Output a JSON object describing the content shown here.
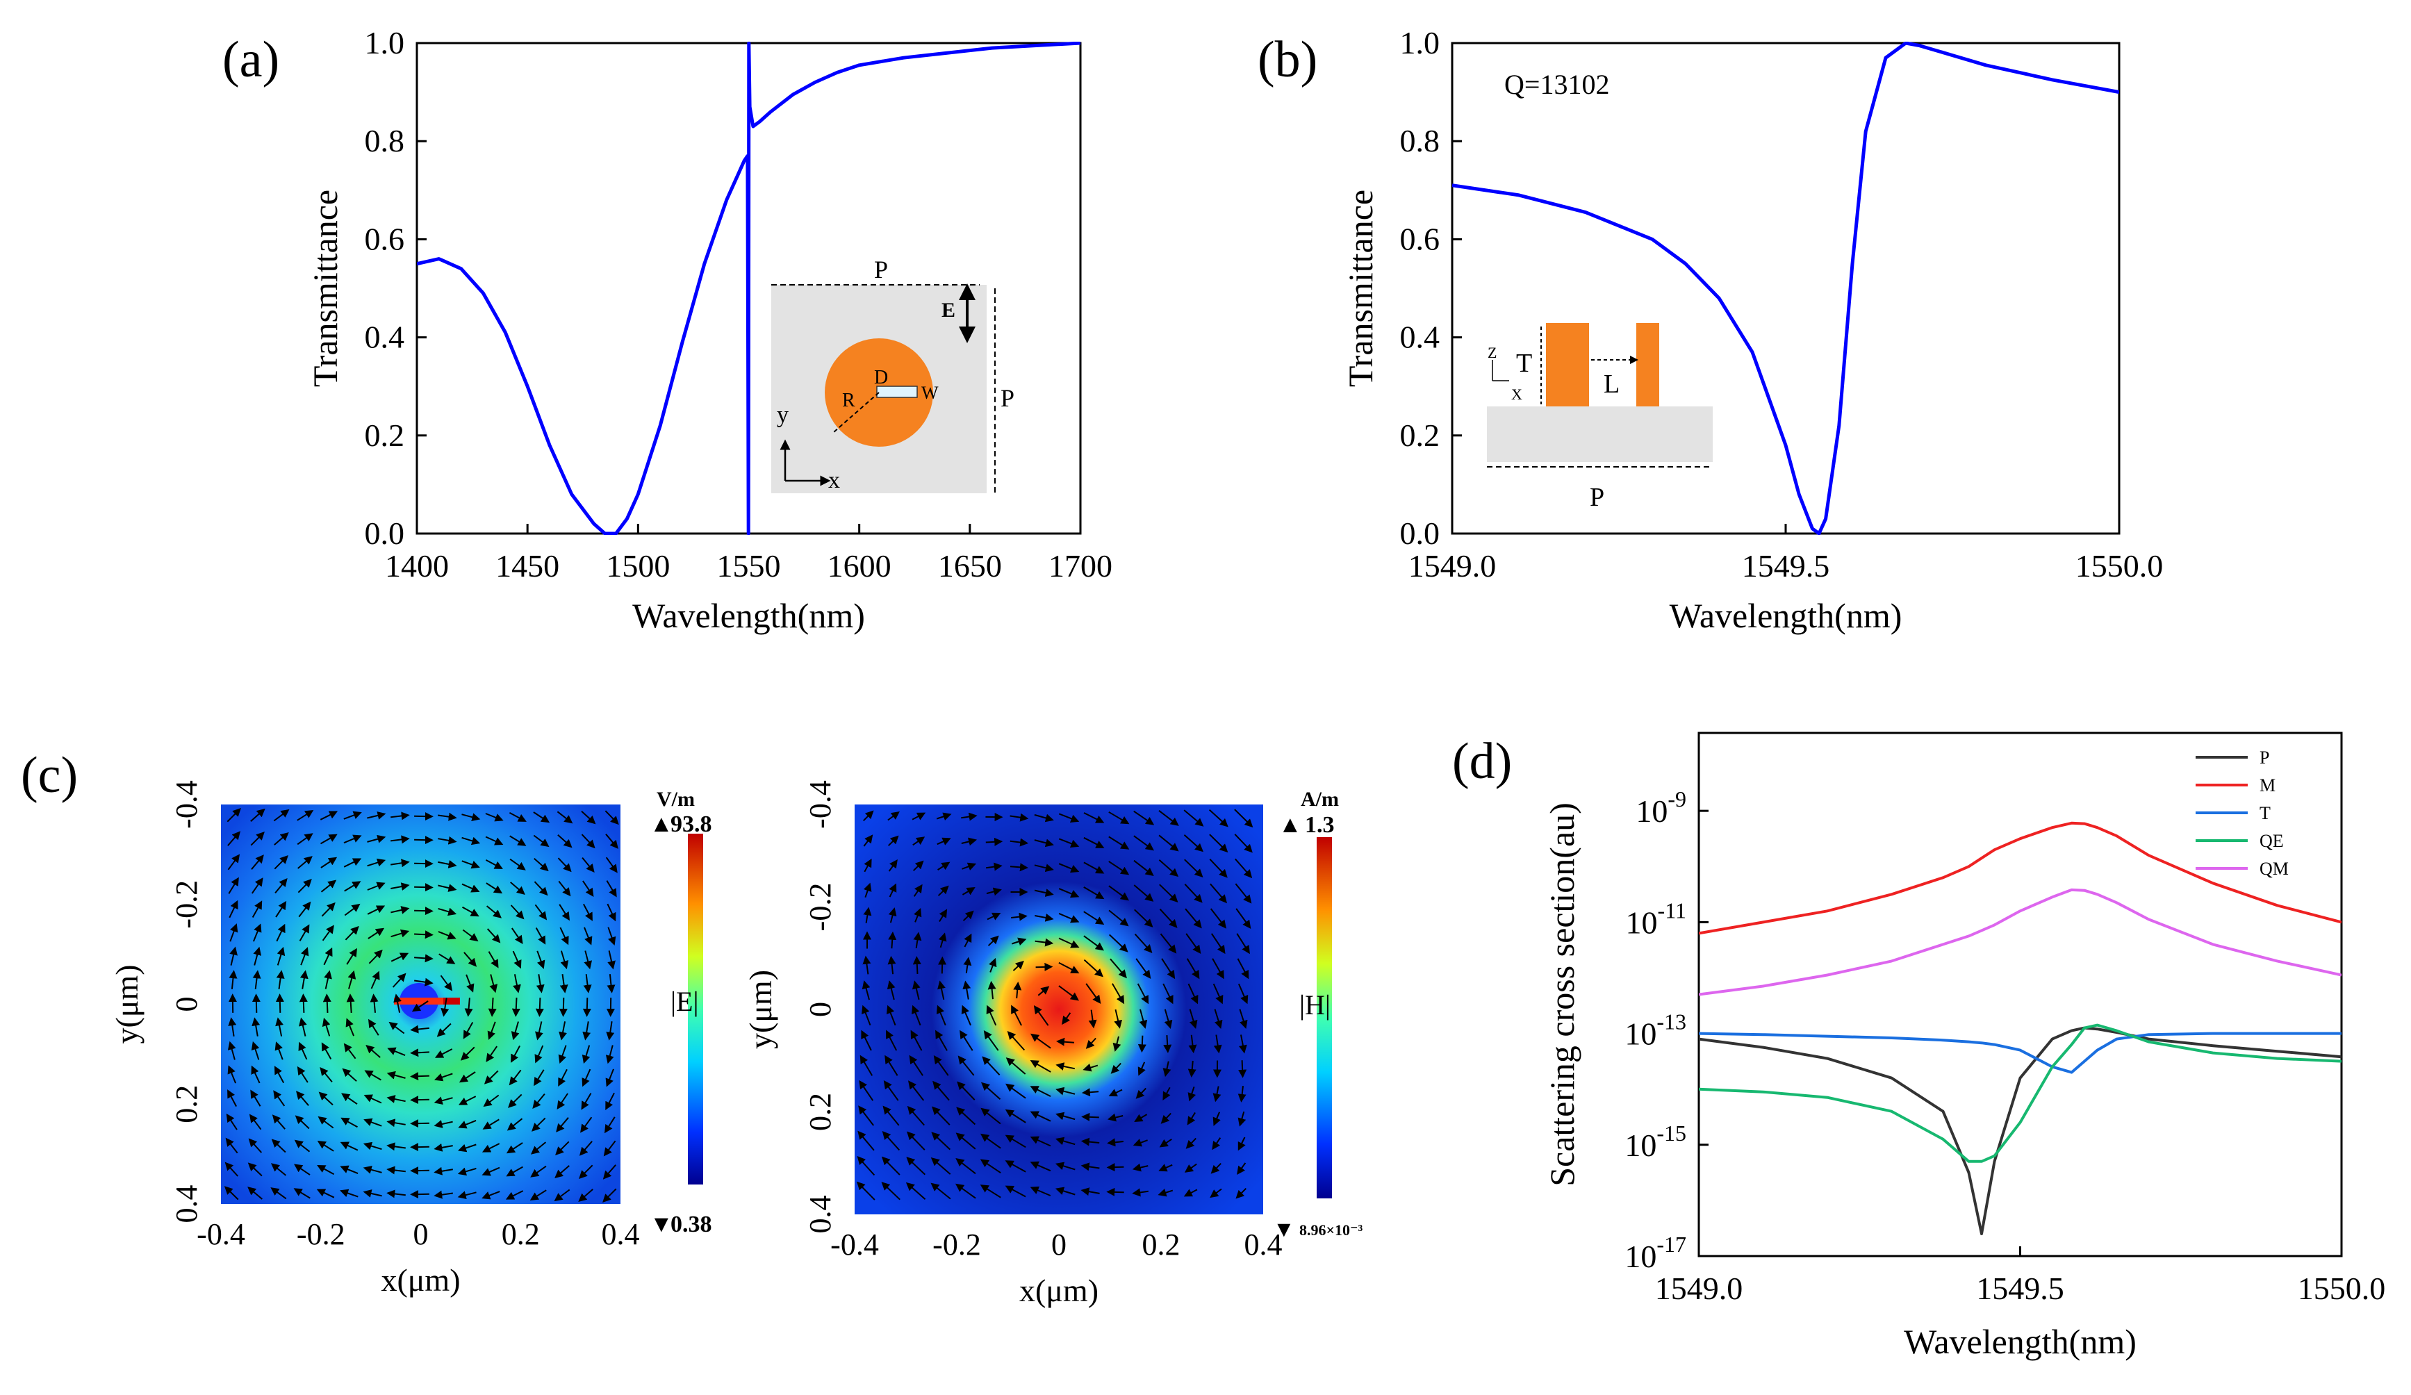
{
  "panels": {
    "a": {
      "label": "(a)",
      "chart_data": {
        "type": "line",
        "xlabel": "Wavelength(nm)",
        "ylabel": "Transmittance",
        "xlim": [
          1400,
          1700
        ],
        "ylim": [
          0.0,
          1.0
        ],
        "xticks": [
          1400,
          1450,
          1500,
          1550,
          1600,
          1650,
          1700
        ],
        "yticks": [
          "0.0",
          "0.2",
          "0.4",
          "0.6",
          "0.8",
          "1.0"
        ],
        "series": [
          {
            "color": "#0000ff",
            "x": [
              1400,
              1410,
              1420,
              1430,
              1440,
              1450,
              1460,
              1470,
              1480,
              1485,
              1490,
              1495,
              1500,
              1510,
              1520,
              1530,
              1540,
              1545,
              1548,
              1549.5,
              1549.9,
              1550.1,
              1550.5,
              1552,
              1555,
              1560,
              1570,
              1580,
              1590,
              1600,
              1620,
              1640,
              1660,
              1680,
              1700
            ],
            "y": [
              0.55,
              0.56,
              0.54,
              0.49,
              0.41,
              0.3,
              0.18,
              0.08,
              0.02,
              0.0,
              0.0,
              0.03,
              0.08,
              0.22,
              0.39,
              0.55,
              0.68,
              0.73,
              0.76,
              0.77,
              0.0,
              1.0,
              0.87,
              0.83,
              0.84,
              0.86,
              0.895,
              0.92,
              0.94,
              0.955,
              0.97,
              0.98,
              0.99,
              0.995,
              1.0
            ]
          }
        ]
      },
      "inset": {
        "p_top": "P",
        "p_side": "P",
        "e_label": "E",
        "d_label": "D",
        "w_label": "W",
        "r_label": "R",
        "y_axis": "y",
        "x_axis": "x",
        "fill_color": "#f58220",
        "bg_color": "#e3e3e3"
      }
    },
    "b": {
      "label": "(b)",
      "annotation": "Q=13102",
      "chart_data": {
        "type": "line",
        "xlabel": "Wavelength(nm)",
        "ylabel": "Transmittance",
        "xlim": [
          1549.0,
          1550.0
        ],
        "ylim": [
          0.0,
          1.0
        ],
        "xticks": [
          "1549.0",
          "1549.5",
          "1550.0"
        ],
        "yticks": [
          "0.0",
          "0.2",
          "0.4",
          "0.6",
          "0.8",
          "1.0"
        ],
        "series": [
          {
            "color": "#0000ff",
            "x": [
              1549.0,
              1549.1,
              1549.2,
              1549.3,
              1549.35,
              1549.4,
              1549.45,
              1549.5,
              1549.52,
              1549.54,
              1549.55,
              1549.56,
              1549.58,
              1549.6,
              1549.62,
              1549.65,
              1549.68,
              1549.7,
              1549.75,
              1549.8,
              1549.9,
              1550.0
            ],
            "y": [
              0.71,
              0.69,
              0.655,
              0.6,
              0.55,
              0.48,
              0.37,
              0.18,
              0.08,
              0.01,
              0.0,
              0.03,
              0.22,
              0.55,
              0.82,
              0.97,
              1.0,
              0.995,
              0.975,
              0.955,
              0.925,
              0.9
            ]
          }
        ]
      },
      "inset": {
        "t_label": "T",
        "l_label": "L",
        "p_label": "P",
        "z_axis": "Z",
        "x_axis": "X",
        "fill_color": "#f58220",
        "bg_color": "#e3e3e3"
      }
    },
    "c": {
      "label": "(c)",
      "left_map": {
        "xlabel": "x(μm)",
        "ylabel": "y(μm)",
        "xticks": [
          "-0.4",
          "-0.2",
          "0",
          "0.2",
          "0.4"
        ],
        "yticks": [
          "-0.4",
          "-0.2",
          "0",
          "0.2",
          "0.4"
        ],
        "cbar_unit": "V/m",
        "cbar_max": "93.8",
        "cbar_min": "0.38",
        "cbar_label": "|E|"
      },
      "right_map": {
        "xlabel": "x(μm)",
        "ylabel": "y(μm)",
        "xticks": [
          "-0.4",
          "-0.2",
          "0",
          "0.2",
          "0.4"
        ],
        "yticks": [
          "-0.4",
          "-0.2",
          "0",
          "0.2",
          "0.4"
        ],
        "cbar_unit": "A/m",
        "cbar_max": "1.3",
        "cbar_min": "8.96×10⁻³",
        "cbar_label": "|H|"
      }
    },
    "d": {
      "label": "(d)",
      "chart_data": {
        "type": "line",
        "xlabel": "Wavelength(nm)",
        "ylabel": "Scattering cross section(au)",
        "yscale": "log",
        "xlim": [
          1549.0,
          1550.0
        ],
        "ylim_exp": [
          -17,
          -7.6
        ],
        "xticks": [
          "1549.0",
          "1549.5",
          "1550.0"
        ],
        "ytick_exps": [
          -9,
          -11,
          -13,
          -15,
          -17
        ],
        "legend_position": "top-right",
        "x": [
          1549.0,
          1549.1,
          1549.2,
          1549.3,
          1549.38,
          1549.42,
          1549.44,
          1549.46,
          1549.5,
          1549.55,
          1549.58,
          1549.6,
          1549.62,
          1549.65,
          1549.7,
          1549.8,
          1549.9,
          1550.0
        ],
        "series": [
          {
            "name": "P",
            "color": "#333333",
            "log_values": [
              -13.1,
              -13.25,
              -13.45,
              -13.8,
              -14.4,
              -15.5,
              -16.6,
              -15.3,
              -13.8,
              -13.1,
              -12.95,
              -12.9,
              -12.92,
              -12.98,
              -13.1,
              -13.22,
              -13.32,
              -13.42
            ]
          },
          {
            "name": "M",
            "color": "#ee2222",
            "log_values": [
              -11.2,
              -11.0,
              -10.8,
              -10.5,
              -10.2,
              -10.0,
              -9.85,
              -9.7,
              -9.5,
              -9.3,
              -9.22,
              -9.23,
              -9.3,
              -9.45,
              -9.8,
              -10.3,
              -10.7,
              -11.0
            ]
          },
          {
            "name": "T",
            "color": "#1a6fe0",
            "log_values": [
              -13.0,
              -13.02,
              -13.05,
              -13.08,
              -13.12,
              -13.15,
              -13.17,
              -13.2,
              -13.3,
              -13.6,
              -13.7,
              -13.5,
              -13.3,
              -13.1,
              -13.02,
              -13.0,
              -13.0,
              -13.0
            ]
          },
          {
            "name": "QE",
            "color": "#17b870",
            "log_values": [
              -14.0,
              -14.05,
              -14.15,
              -14.4,
              -14.9,
              -15.3,
              -15.3,
              -15.2,
              -14.6,
              -13.6,
              -13.2,
              -12.9,
              -12.85,
              -12.95,
              -13.15,
              -13.35,
              -13.45,
              -13.5
            ]
          },
          {
            "name": "QM",
            "color": "#dd66ee",
            "log_values": [
              -12.3,
              -12.15,
              -11.95,
              -11.7,
              -11.4,
              -11.25,
              -11.15,
              -11.05,
              -10.8,
              -10.55,
              -10.42,
              -10.43,
              -10.5,
              -10.65,
              -10.95,
              -11.4,
              -11.7,
              -11.95
            ]
          }
        ]
      }
    }
  }
}
